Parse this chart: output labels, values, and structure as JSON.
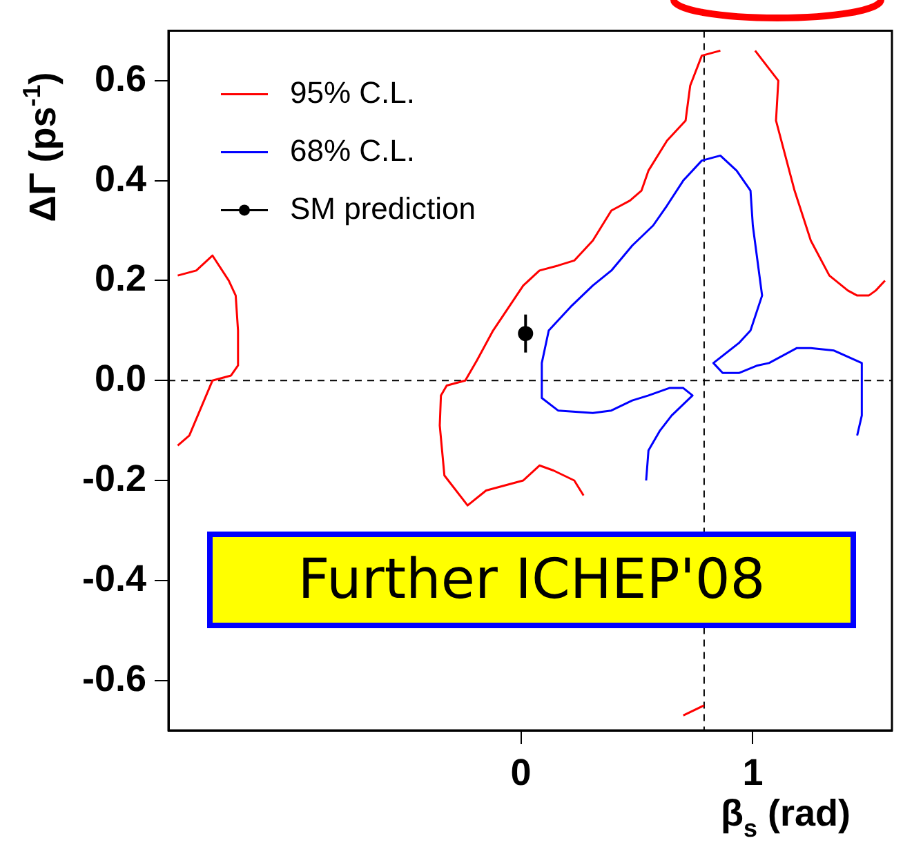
{
  "chart_data": {
    "type": "line",
    "xlabel": "β$_{s}$ (rad)",
    "ylabel": "ΔΓ (ps$^{-1}$)",
    "xlim": [
      -1.52,
      1.6
    ],
    "ylim": [
      -0.7,
      0.7
    ],
    "xticks": [
      0,
      1
    ],
    "yticks": [
      {
        "value": -0.6,
        "label": "-0.6"
      },
      {
        "value": -0.4,
        "label": "-0.4"
      },
      {
        "value": -0.2,
        "label": "-0.2"
      },
      {
        "value": 0,
        "label": "0.0"
      },
      {
        "value": 0.2,
        "label": "0.2"
      },
      {
        "value": 0.4,
        "label": "0.4"
      },
      {
        "value": 0.6,
        "label": "0.6"
      }
    ],
    "legend": "top left",
    "series": [
      {
        "name": "95% C.L.",
        "color": "#ff0000",
        "x": [
          0.27,
          0.23,
          0.14,
          0.08,
          0.01,
          -0.15,
          -0.23,
          -0.33,
          -0.35,
          -0.345,
          -0.32,
          -0.24,
          -0.19,
          -0.12,
          0.01,
          0.08,
          0.16,
          0.23,
          0.31,
          0.39,
          0.47,
          0.52,
          0.55,
          0.63,
          0.71,
          0.73,
          0.78,
          0.86
        ],
        "values": [
          -0.23,
          -0.2,
          -0.18,
          -0.17,
          -0.2,
          -0.22,
          -0.25,
          -0.19,
          -0.09,
          -0.03,
          -0.01,
          0,
          0.04,
          0.1,
          0.19,
          0.22,
          0.23,
          0.24,
          0.28,
          0.34,
          0.36,
          0.38,
          0.42,
          0.48,
          0.52,
          0.59,
          0.65,
          0.66
        ]
      },
      {
        "color": "#ff0000",
        "x": [
          -1.48,
          -1.43,
          -1.33,
          -1.25,
          -1.22,
          -1.22,
          -1.23,
          -1.26,
          -1.33,
          -1.4,
          -1.48
        ],
        "values": [
          -0.13,
          -0.11,
          0,
          0.01,
          0.03,
          0.1,
          0.17,
          0.2,
          0.25,
          0.22,
          0.21
        ]
      },
      {
        "color": "#ff0000",
        "x": [
          1.01,
          1.11,
          1.1,
          1.18,
          1.25,
          1.33,
          1.41,
          1.45,
          1.5,
          1.53,
          1.57
        ],
        "values": [
          0.66,
          0.6,
          0.52,
          0.38,
          0.28,
          0.21,
          0.18,
          0.17,
          0.17,
          0.18,
          0.2
        ]
      },
      {
        "color": "#ff0000",
        "x": [
          0.7,
          0.79
        ],
        "values": [
          -0.67,
          -0.65
        ]
      },
      {
        "name": "68% C.L.",
        "color": "#0000ff",
        "x": [
          0.54,
          0.55,
          0.6,
          0.65,
          0.74,
          0.7,
          0.64,
          0.55,
          0.48,
          0.39,
          0.31,
          0.16,
          0.09,
          0.09,
          0.12,
          0.22,
          0.31,
          0.39,
          0.48,
          0.57,
          0.63,
          0.7,
          0.78,
          0.86,
          0.93,
          0.99,
          1.0,
          1.04,
          0.99,
          0.94,
          0.83,
          0.87,
          0.94,
          1.02,
          1.07,
          1.19,
          1.25,
          1.35,
          1.47,
          1.47,
          1.45
        ],
        "values": [
          -0.2,
          -0.14,
          -0.1,
          -0.07,
          -0.03,
          -0.015,
          -0.015,
          -0.03,
          -0.04,
          -0.06,
          -0.065,
          -0.06,
          -0.035,
          0.035,
          0.1,
          0.15,
          0.19,
          0.22,
          0.27,
          0.31,
          0.35,
          0.4,
          0.44,
          0.45,
          0.42,
          0.38,
          0.31,
          0.17,
          0.1,
          0.075,
          0.035,
          0.015,
          0.015,
          0.03,
          0.035,
          0.065,
          0.065,
          0.06,
          0.035,
          -0.07,
          -0.11
        ]
      },
      {
        "name": "SM prediction",
        "type": "scatter",
        "color": "#000000",
        "marker": "circle",
        "x": [
          0.02
        ],
        "values": [
          0.094
        ],
        "errors": [
          0.038
        ]
      }
    ],
    "ref_lines": [
      {
        "axis": "y",
        "value": 0,
        "line_style": "dashed",
        "color": "#000000"
      },
      {
        "axis": "x",
        "value": 0.79,
        "line_style": "dashed",
        "color": "#000000"
      }
    ],
    "annotations": [
      "Further ICHEP'08"
    ]
  }
}
